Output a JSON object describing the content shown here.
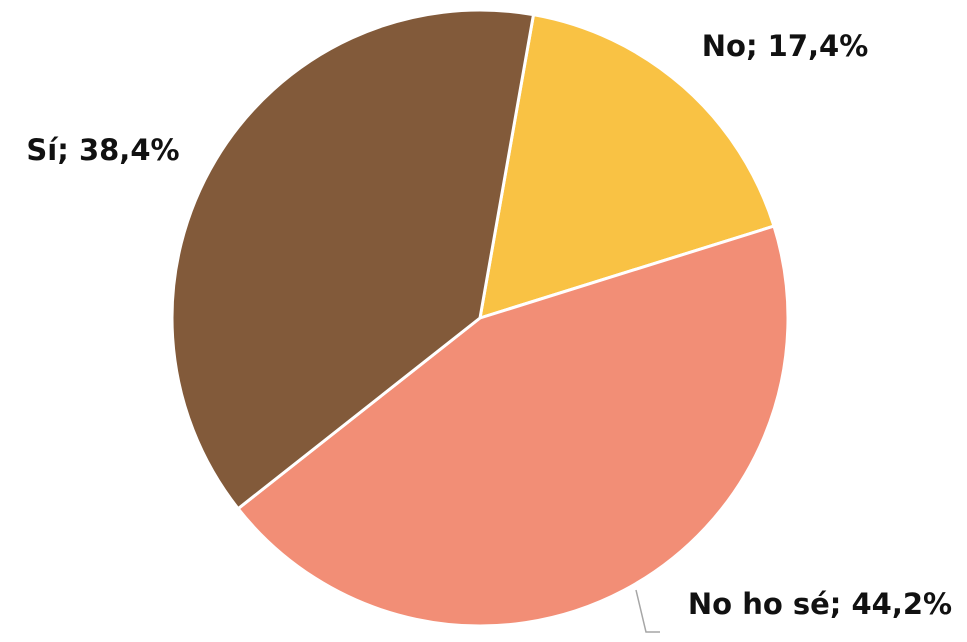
{
  "chart_data": {
    "type": "pie",
    "title": "",
    "slices": [
      {
        "label": "No",
        "value": 17.4,
        "display": "No; 17,4%",
        "color": "#F9C244"
      },
      {
        "label": "No ho sé",
        "value": 44.2,
        "display": "No ho sé; 44,2%",
        "color": "#F28E76"
      },
      {
        "label": "Sí",
        "value": 38.4,
        "display": "Sí; 38,4%",
        "color": "#825A3A"
      }
    ],
    "start_angle_deg": 10,
    "direction": "clockwise",
    "slice_border_color": "#ffffff",
    "leader_line_color": "#A6A6A6",
    "legend": "none"
  }
}
